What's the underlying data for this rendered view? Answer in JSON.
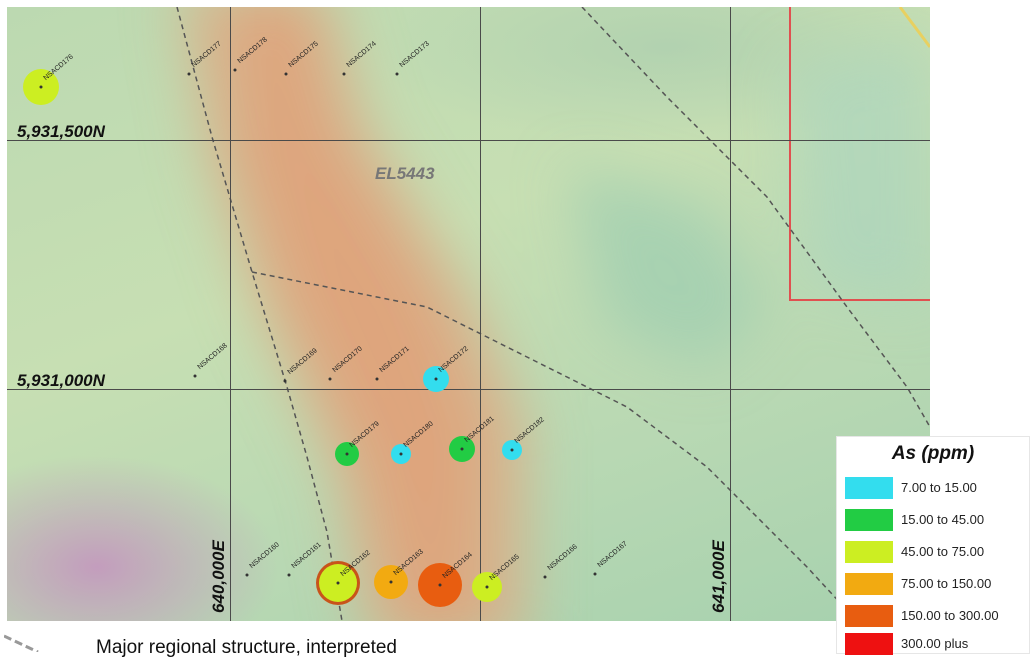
{
  "map": {
    "tenement": "EL5443",
    "northings": [
      "5,931,500N",
      "5,931,000N"
    ],
    "eastings": [
      "640,000E",
      "641,000E"
    ]
  },
  "legend": {
    "title": "As (ppm)",
    "classes": [
      {
        "label": "7.00 to 15.00",
        "color": "#33ddee"
      },
      {
        "label": "15.00 to 45.00",
        "color": "#22cc44"
      },
      {
        "label": "45.00 to 75.00",
        "color": "#ccee22"
      },
      {
        "label": "75.00 to 150.00",
        "color": "#f2aa11"
      },
      {
        "label": "150.00 to 300.00",
        "color": "#e85d10"
      },
      {
        "label": "300.00  plus",
        "color": "#ee1111"
      }
    ]
  },
  "drillholes": [
    {
      "id": "NSACD176",
      "class": 2
    },
    {
      "id": "NSACD177",
      "class": null
    },
    {
      "id": "NSACD178",
      "class": null
    },
    {
      "id": "NSACD175",
      "class": null
    },
    {
      "id": "NSACD174",
      "class": null
    },
    {
      "id": "NSACD168",
      "class": null
    },
    {
      "id": "NSACD169",
      "class": null
    },
    {
      "id": "NSACD170",
      "class": null
    },
    {
      "id": "NSACD171",
      "class": null
    },
    {
      "id": "NSACD172",
      "class": 0
    },
    {
      "id": "NSACD173",
      "class": null
    },
    {
      "id": "NSACD179",
      "class": 1
    },
    {
      "id": "NSACD180",
      "class": 0
    },
    {
      "id": "NSACD181",
      "class": 1
    },
    {
      "id": "NSACD182",
      "class": 0
    },
    {
      "id": "NSACD160",
      "class": null
    },
    {
      "id": "NSACD161",
      "class": null
    },
    {
      "id": "NSACD162",
      "class": 2
    },
    {
      "id": "NSACD163",
      "class": 3
    },
    {
      "id": "NSACD164",
      "class": 4
    },
    {
      "id": "NSACD165",
      "class": 2
    },
    {
      "id": "NSACD166",
      "class": null
    },
    {
      "id": "NSACD167",
      "class": null
    }
  ],
  "footer": {
    "structure_label": "Major regional structure, interpreted"
  }
}
